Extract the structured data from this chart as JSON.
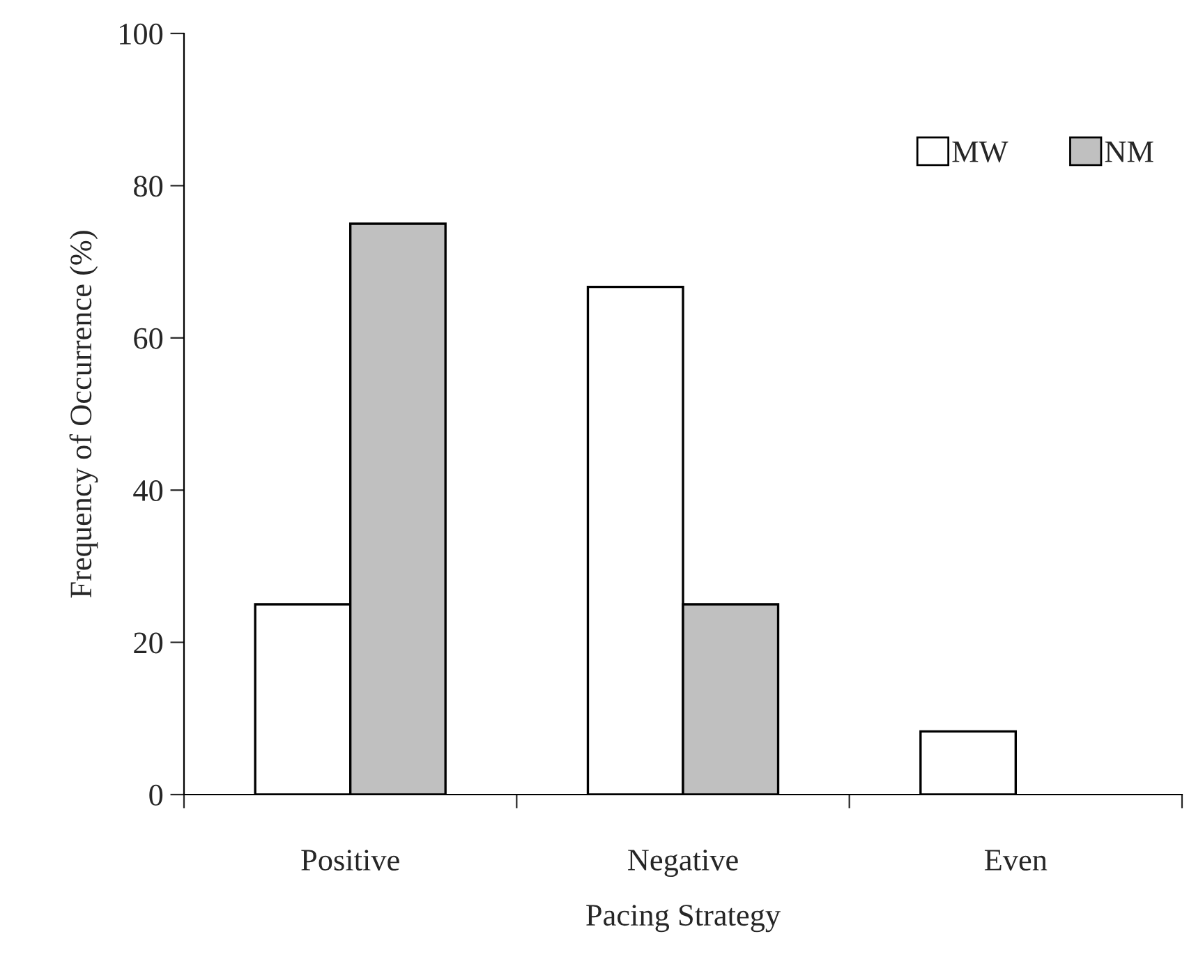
{
  "chart_data": {
    "type": "bar",
    "xlabel": "Pacing Strategy",
    "ylabel": "Frequency of Occurrence (%)",
    "categories": [
      "Positive",
      "Negative",
      "Even"
    ],
    "series": [
      {
        "name": "MW",
        "color": "#ffffff",
        "values": [
          25,
          66.7,
          8.3
        ]
      },
      {
        "name": "NM",
        "color": "#c0c0c0",
        "values": [
          75,
          25,
          null
        ]
      }
    ],
    "ylim": [
      0,
      100
    ],
    "yticks": [
      0,
      20,
      40,
      60,
      80,
      100
    ],
    "grid": false,
    "legend": "top right"
  }
}
